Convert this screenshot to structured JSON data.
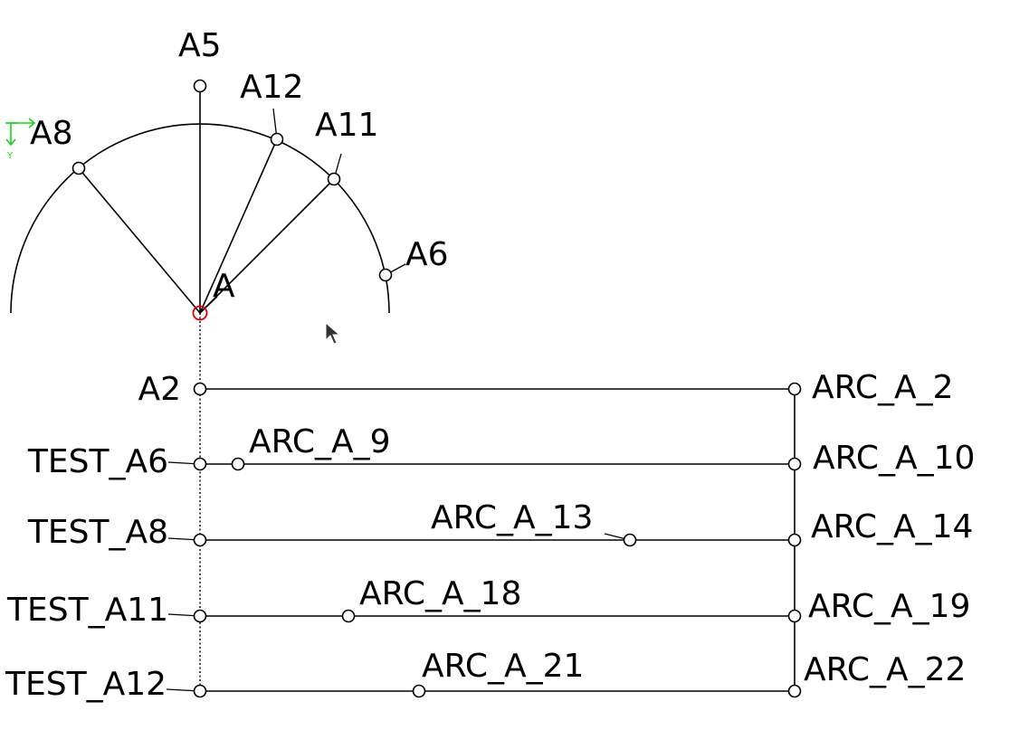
{
  "colors": {
    "geometry": "#000000",
    "origin_point": "#e00000",
    "axis_indicator": "#19d419",
    "background": "#ffffff"
  },
  "axis_indicator": {
    "y_label": "Y"
  },
  "cursor": {
    "icon": "mouse-pointer-arrow"
  },
  "labels": {
    "a": "A",
    "a5": "A5",
    "a12": "A12",
    "a11": "A11",
    "a8": "A8",
    "a6": "A6",
    "a2": "A2",
    "test_a6": "TEST_A6",
    "test_a8": "TEST_A8",
    "test_a11": "TEST_A11",
    "test_a12": "TEST_A12",
    "arc_a_2": "ARC_A_2",
    "arc_a_9": "ARC_A_9",
    "arc_a_10": "ARC_A_10",
    "arc_a_13": "ARC_A_13",
    "arc_a_14": "ARC_A_14",
    "arc_a_18": "ARC_A_18",
    "arc_a_19": "ARC_A_19",
    "arc_a_21": "ARC_A_21",
    "arc_a_22": "ARC_A_22"
  }
}
